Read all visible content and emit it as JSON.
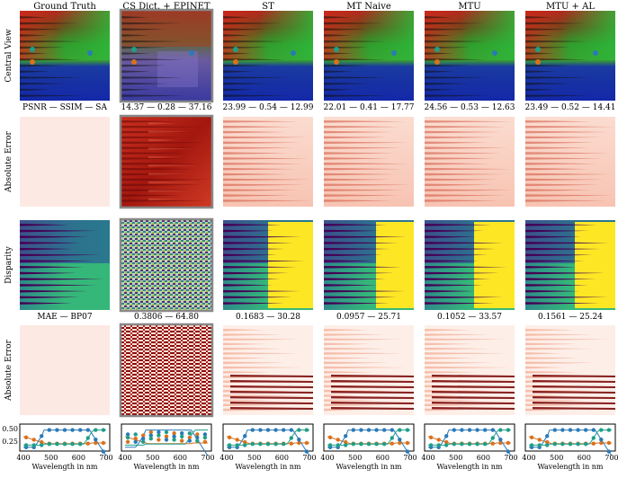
{
  "columns": [
    {
      "label": "Ground Truth",
      "metrics_rgb": "PSNR — SSIM — SA",
      "metrics_disp": "MAE — BP07",
      "highlight": false
    },
    {
      "label": "CS Dict. + EPINET",
      "metrics_rgb": "14.37 — 0.28 — 37.16",
      "metrics_disp": "0.3806 — 64.80",
      "highlight": true
    },
    {
      "label": "ST",
      "metrics_rgb": "23.99 — 0.54 — 12.99",
      "metrics_disp": "0.1683 — 30.28",
      "highlight": false
    },
    {
      "label": "MT Naive",
      "metrics_rgb": "22.01 — 0.41 — 17.77",
      "metrics_disp": "0.0957 — 25.71",
      "highlight": false
    },
    {
      "label": "MTU",
      "metrics_rgb": "24.56 — 0.53 — 12.63",
      "metrics_disp": "0.1052 — 33.57",
      "highlight": false
    },
    {
      "label": "MTU + AL",
      "metrics_rgb": "23.49 — 0.52 — 14.41",
      "metrics_disp": "0.1561 — 25.24",
      "highlight": false
    }
  ],
  "row_labels": [
    "Central View",
    "Absolute Error",
    "Disparity",
    "Absolute Error"
  ],
  "spectra": {
    "xlabel": "Wavelength in nm",
    "xticks": [
      "400",
      "500",
      "600",
      "700"
    ],
    "yticks": [
      "0.50",
      "0.25"
    ],
    "colors": {
      "orange": "#d9711c",
      "blue": "#2a7ab8",
      "teal": "#1f9e89"
    }
  },
  "colors": {
    "panel_border_highlight": "#888888",
    "error_low": "#fde9e3",
    "error_high": "#7a0a0a",
    "disp_far": "#440154",
    "disp_mid": "#2a788e",
    "disp_near": "#fde725"
  }
}
